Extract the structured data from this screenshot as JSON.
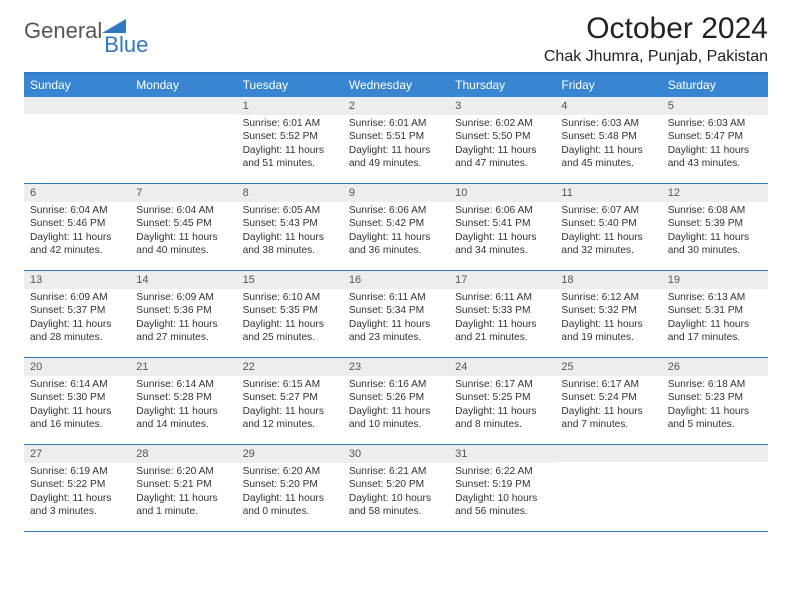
{
  "logo": {
    "part1": "General",
    "part2": "Blue"
  },
  "title": "October 2024",
  "subtitle": "Chak Jhumra, Punjab, Pakistan",
  "colors": {
    "header_bg": "#3885d1",
    "header_text": "#ffffff",
    "border": "#2f78c4",
    "daynum_bg": "#ededed",
    "body_text": "#333333",
    "logo_gray": "#555555",
    "logo_blue": "#2f78c4"
  },
  "day_headers": [
    "Sunday",
    "Monday",
    "Tuesday",
    "Wednesday",
    "Thursday",
    "Friday",
    "Saturday"
  ],
  "weeks": [
    [
      {
        "n": "",
        "lines": []
      },
      {
        "n": "",
        "lines": []
      },
      {
        "n": "1",
        "lines": [
          "Sunrise: 6:01 AM",
          "Sunset: 5:52 PM",
          "Daylight: 11 hours",
          "and 51 minutes."
        ]
      },
      {
        "n": "2",
        "lines": [
          "Sunrise: 6:01 AM",
          "Sunset: 5:51 PM",
          "Daylight: 11 hours",
          "and 49 minutes."
        ]
      },
      {
        "n": "3",
        "lines": [
          "Sunrise: 6:02 AM",
          "Sunset: 5:50 PM",
          "Daylight: 11 hours",
          "and 47 minutes."
        ]
      },
      {
        "n": "4",
        "lines": [
          "Sunrise: 6:03 AM",
          "Sunset: 5:48 PM",
          "Daylight: 11 hours",
          "and 45 minutes."
        ]
      },
      {
        "n": "5",
        "lines": [
          "Sunrise: 6:03 AM",
          "Sunset: 5:47 PM",
          "Daylight: 11 hours",
          "and 43 minutes."
        ]
      }
    ],
    [
      {
        "n": "6",
        "lines": [
          "Sunrise: 6:04 AM",
          "Sunset: 5:46 PM",
          "Daylight: 11 hours",
          "and 42 minutes."
        ]
      },
      {
        "n": "7",
        "lines": [
          "Sunrise: 6:04 AM",
          "Sunset: 5:45 PM",
          "Daylight: 11 hours",
          "and 40 minutes."
        ]
      },
      {
        "n": "8",
        "lines": [
          "Sunrise: 6:05 AM",
          "Sunset: 5:43 PM",
          "Daylight: 11 hours",
          "and 38 minutes."
        ]
      },
      {
        "n": "9",
        "lines": [
          "Sunrise: 6:06 AM",
          "Sunset: 5:42 PM",
          "Daylight: 11 hours",
          "and 36 minutes."
        ]
      },
      {
        "n": "10",
        "lines": [
          "Sunrise: 6:06 AM",
          "Sunset: 5:41 PM",
          "Daylight: 11 hours",
          "and 34 minutes."
        ]
      },
      {
        "n": "11",
        "lines": [
          "Sunrise: 6:07 AM",
          "Sunset: 5:40 PM",
          "Daylight: 11 hours",
          "and 32 minutes."
        ]
      },
      {
        "n": "12",
        "lines": [
          "Sunrise: 6:08 AM",
          "Sunset: 5:39 PM",
          "Daylight: 11 hours",
          "and 30 minutes."
        ]
      }
    ],
    [
      {
        "n": "13",
        "lines": [
          "Sunrise: 6:09 AM",
          "Sunset: 5:37 PM",
          "Daylight: 11 hours",
          "and 28 minutes."
        ]
      },
      {
        "n": "14",
        "lines": [
          "Sunrise: 6:09 AM",
          "Sunset: 5:36 PM",
          "Daylight: 11 hours",
          "and 27 minutes."
        ]
      },
      {
        "n": "15",
        "lines": [
          "Sunrise: 6:10 AM",
          "Sunset: 5:35 PM",
          "Daylight: 11 hours",
          "and 25 minutes."
        ]
      },
      {
        "n": "16",
        "lines": [
          "Sunrise: 6:11 AM",
          "Sunset: 5:34 PM",
          "Daylight: 11 hours",
          "and 23 minutes."
        ]
      },
      {
        "n": "17",
        "lines": [
          "Sunrise: 6:11 AM",
          "Sunset: 5:33 PM",
          "Daylight: 11 hours",
          "and 21 minutes."
        ]
      },
      {
        "n": "18",
        "lines": [
          "Sunrise: 6:12 AM",
          "Sunset: 5:32 PM",
          "Daylight: 11 hours",
          "and 19 minutes."
        ]
      },
      {
        "n": "19",
        "lines": [
          "Sunrise: 6:13 AM",
          "Sunset: 5:31 PM",
          "Daylight: 11 hours",
          "and 17 minutes."
        ]
      }
    ],
    [
      {
        "n": "20",
        "lines": [
          "Sunrise: 6:14 AM",
          "Sunset: 5:30 PM",
          "Daylight: 11 hours",
          "and 16 minutes."
        ]
      },
      {
        "n": "21",
        "lines": [
          "Sunrise: 6:14 AM",
          "Sunset: 5:28 PM",
          "Daylight: 11 hours",
          "and 14 minutes."
        ]
      },
      {
        "n": "22",
        "lines": [
          "Sunrise: 6:15 AM",
          "Sunset: 5:27 PM",
          "Daylight: 11 hours",
          "and 12 minutes."
        ]
      },
      {
        "n": "23",
        "lines": [
          "Sunrise: 6:16 AM",
          "Sunset: 5:26 PM",
          "Daylight: 11 hours",
          "and 10 minutes."
        ]
      },
      {
        "n": "24",
        "lines": [
          "Sunrise: 6:17 AM",
          "Sunset: 5:25 PM",
          "Daylight: 11 hours",
          "and 8 minutes."
        ]
      },
      {
        "n": "25",
        "lines": [
          "Sunrise: 6:17 AM",
          "Sunset: 5:24 PM",
          "Daylight: 11 hours",
          "and 7 minutes."
        ]
      },
      {
        "n": "26",
        "lines": [
          "Sunrise: 6:18 AM",
          "Sunset: 5:23 PM",
          "Daylight: 11 hours",
          "and 5 minutes."
        ]
      }
    ],
    [
      {
        "n": "27",
        "lines": [
          "Sunrise: 6:19 AM",
          "Sunset: 5:22 PM",
          "Daylight: 11 hours",
          "and 3 minutes."
        ]
      },
      {
        "n": "28",
        "lines": [
          "Sunrise: 6:20 AM",
          "Sunset: 5:21 PM",
          "Daylight: 11 hours",
          "and 1 minute."
        ]
      },
      {
        "n": "29",
        "lines": [
          "Sunrise: 6:20 AM",
          "Sunset: 5:20 PM",
          "Daylight: 11 hours",
          "and 0 minutes."
        ]
      },
      {
        "n": "30",
        "lines": [
          "Sunrise: 6:21 AM",
          "Sunset: 5:20 PM",
          "Daylight: 10 hours",
          "and 58 minutes."
        ]
      },
      {
        "n": "31",
        "lines": [
          "Sunrise: 6:22 AM",
          "Sunset: 5:19 PM",
          "Daylight: 10 hours",
          "and 56 minutes."
        ]
      },
      {
        "n": "",
        "lines": []
      },
      {
        "n": "",
        "lines": []
      }
    ]
  ]
}
